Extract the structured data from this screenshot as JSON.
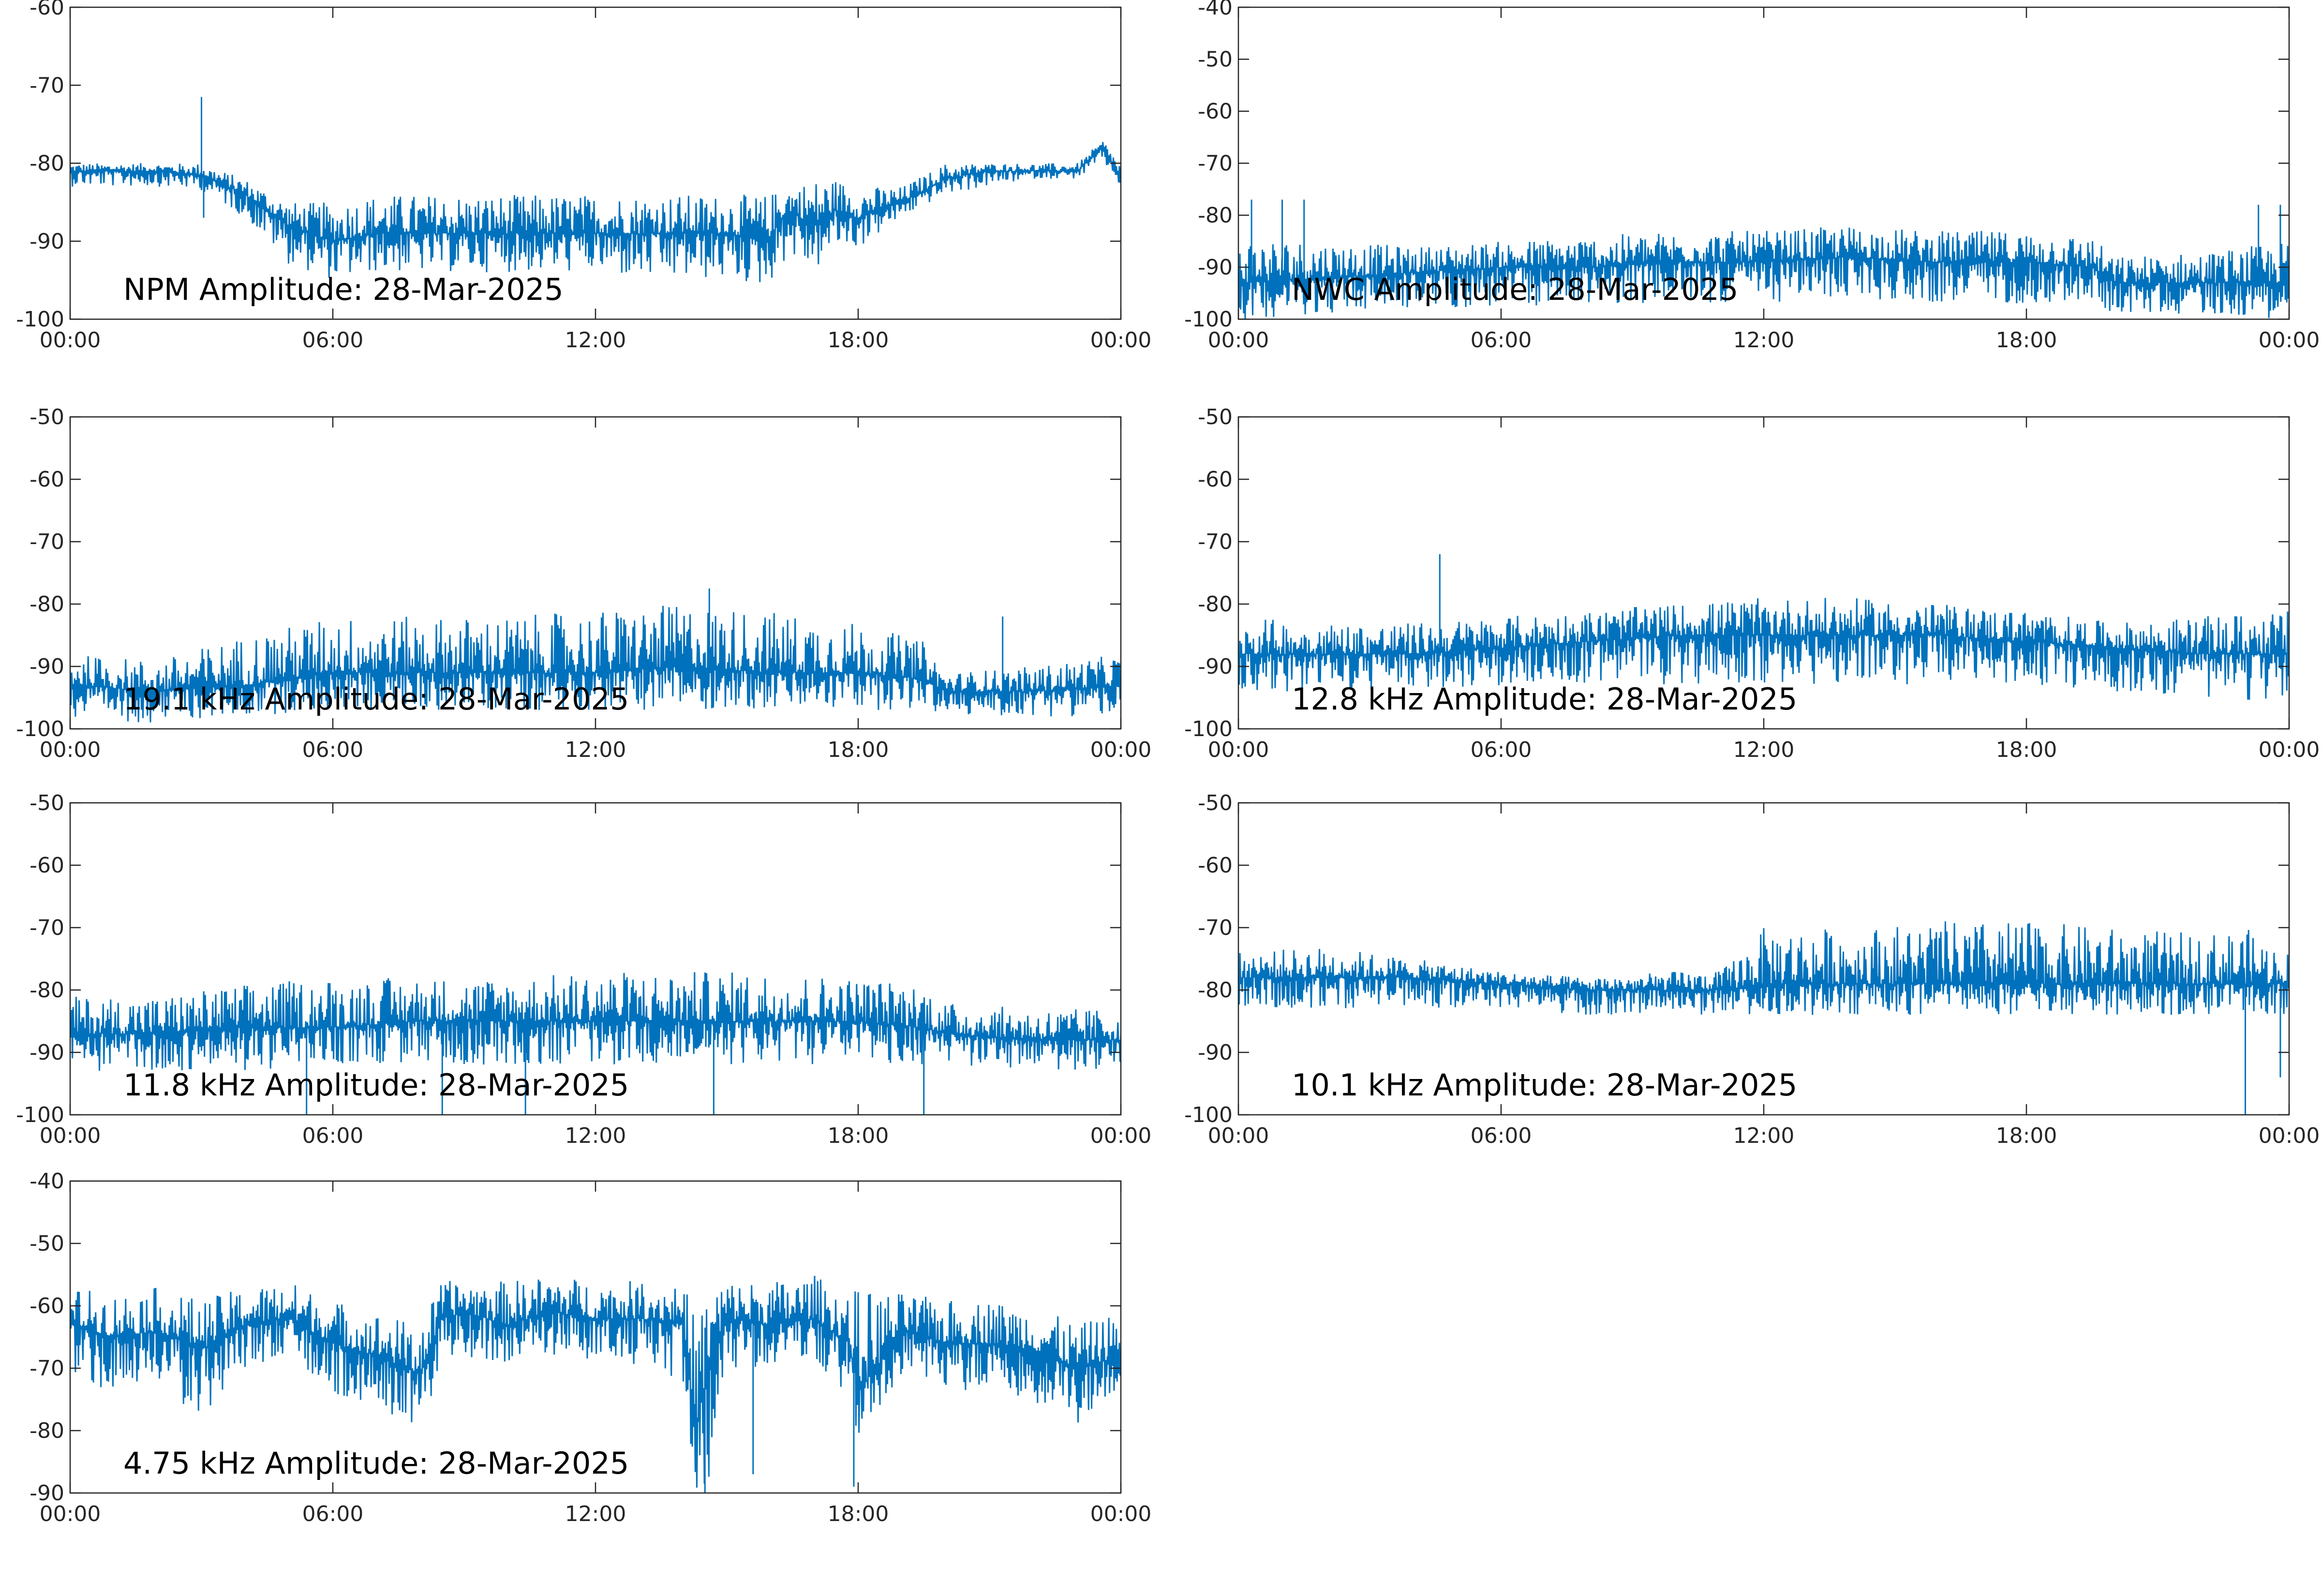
{
  "figure": {
    "line_color": "#0072BD",
    "axis_color": "#262626",
    "background": "#ffffff"
  },
  "chart_data": [
    {
      "type": "line",
      "title": "NPM Amplitude: 28-Mar-2025",
      "xlabel": "",
      "ylabel": "",
      "xticklabels": [
        "00:00",
        "06:00",
        "12:00",
        "18:00",
        "00:00"
      ],
      "xlim_hours": [
        0,
        24
      ],
      "ylim": [
        -100,
        -60
      ],
      "yticks": [
        -100,
        -90,
        -80,
        -70,
        -60
      ],
      "grid": false,
      "series": [
        {
          "x_hours": [
            0,
            1,
            2,
            3,
            4,
            5,
            6,
            7,
            8,
            9,
            10,
            11,
            12,
            13,
            14,
            15,
            15.9,
            16.4,
            17,
            17.5,
            18,
            19,
            20,
            21,
            22,
            23,
            23.6,
            24
          ],
          "y_center": [
            -81,
            -81,
            -81,
            -81.5,
            -84,
            -88,
            -90,
            -89,
            -89,
            -89,
            -89,
            -89,
            -89,
            -89,
            -89,
            -89,
            -90,
            -86,
            -88,
            -86,
            -87,
            -85,
            -82,
            -81,
            -81,
            -81,
            -78,
            -82
          ],
          "y_low": [
            -83,
            -83,
            -83,
            -83.5,
            -87,
            -93,
            -95,
            -94,
            -94,
            -94,
            -94,
            -94,
            -94,
            -95,
            -95,
            -95,
            -96,
            -92,
            -94,
            -91,
            -91,
            -87,
            -84,
            -83,
            -82,
            -82,
            -80,
            -83
          ],
          "y_high": [
            -80,
            -80,
            -80,
            -80,
            -82,
            -85,
            -85,
            -84,
            -84,
            -84,
            -84,
            -84,
            -84,
            -84,
            -84,
            -84,
            -84,
            -83,
            -82,
            -82,
            -83,
            -83,
            -80,
            -80,
            -80,
            -80,
            -77,
            -80
          ],
          "spikes": [
            {
              "x_hours": 3.0,
              "y": -71.5
            },
            {
              "x_hours": 3.05,
              "y": -87
            }
          ]
        }
      ]
    },
    {
      "type": "line",
      "title": "NWC Amplitude: 28-Mar-2025",
      "xlabel": "",
      "ylabel": "",
      "xticklabels": [
        "00:00",
        "06:00",
        "12:00",
        "18:00",
        "00:00"
      ],
      "xlim_hours": [
        0,
        24
      ],
      "ylim": [
        -100,
        -40
      ],
      "yticks": [
        -100,
        -90,
        -80,
        -70,
        -60,
        -50,
        -40
      ],
      "grid": false,
      "series": [
        {
          "x_hours": [
            0,
            2,
            4,
            6,
            8,
            10,
            12,
            14,
            16,
            18,
            19.5,
            20,
            22,
            24
          ],
          "y_center": [
            -93,
            -92,
            -91,
            -90,
            -90,
            -89,
            -89,
            -88,
            -89,
            -89,
            -90,
            -93,
            -93,
            -93
          ],
          "y_low": [
            -100,
            -99,
            -98,
            -98,
            -97,
            -97,
            -97,
            -96,
            -97,
            -97,
            -97,
            -99,
            -99,
            -100
          ],
          "y_high": [
            -84,
            -85,
            -86,
            -85,
            -84,
            -83,
            -83,
            -82,
            -83,
            -83,
            -84,
            -88,
            -87,
            -85
          ],
          "spikes": [
            {
              "x_hours": 0.3,
              "y": -77
            },
            {
              "x_hours": 1.0,
              "y": -77
            },
            {
              "x_hours": 1.5,
              "y": -77
            },
            {
              "x_hours": 23.3,
              "y": -78
            },
            {
              "x_hours": 23.8,
              "y": -78
            }
          ]
        }
      ]
    },
    {
      "type": "line",
      "title": "19.1 kHz Amplitude: 28-Mar-2025",
      "xlabel": "",
      "ylabel": "",
      "xticklabels": [
        "00:00",
        "06:00",
        "12:00",
        "18:00",
        "00:00"
      ],
      "xlim_hours": [
        0,
        24
      ],
      "ylim": [
        -100,
        -50
      ],
      "yticks": [
        -100,
        -90,
        -80,
        -70,
        -60,
        -50
      ],
      "grid": false,
      "series": [
        {
          "x_hours": [
            0,
            2,
            4,
            6,
            8,
            10,
            12,
            14,
            16,
            18,
            19.5,
            20,
            22,
            24
          ],
          "y_center": [
            -93,
            -94,
            -93,
            -91,
            -91,
            -91,
            -91,
            -90,
            -91,
            -91,
            -92,
            -94,
            -94,
            -93
          ],
          "y_low": [
            -99,
            -99,
            -98,
            -97,
            -97,
            -97,
            -97,
            -97,
            -97,
            -97,
            -97,
            -98,
            -98,
            -98
          ],
          "y_high": [
            -88,
            -89,
            -85,
            -82,
            -82,
            -82,
            -81,
            -80,
            -81,
            -83,
            -86,
            -91,
            -90,
            -88
          ],
          "spikes": [
            {
              "x_hours": 14.6,
              "y": -77.5
            },
            {
              "x_hours": 21.3,
              "y": -82
            }
          ]
        }
      ]
    },
    {
      "type": "line",
      "title": "12.8 kHz Amplitude: 28-Mar-2025",
      "xlabel": "",
      "ylabel": "",
      "xticklabels": [
        "00:00",
        "06:00",
        "12:00",
        "18:00",
        "00:00"
      ],
      "xlim_hours": [
        0,
        24
      ],
      "ylim": [
        -100,
        -50
      ],
      "yticks": [
        -100,
        -90,
        -80,
        -70,
        -60,
        -50
      ],
      "grid": false,
      "series": [
        {
          "x_hours": [
            0,
            2,
            4,
            6,
            8,
            10,
            12,
            14,
            16,
            18,
            20,
            22,
            24
          ],
          "y_center": [
            -88,
            -88,
            -88,
            -87,
            -86,
            -85,
            -85,
            -85,
            -85,
            -86,
            -87,
            -88,
            -88
          ],
          "y_low": [
            -94,
            -94,
            -94,
            -93,
            -93,
            -93,
            -93,
            -93,
            -93,
            -93,
            -94,
            -95,
            -96
          ],
          "y_high": [
            -82,
            -83,
            -83,
            -82,
            -81,
            -80,
            -79,
            -79,
            -80,
            -81,
            -83,
            -82,
            -81
          ],
          "spikes": [
            {
              "x_hours": 4.6,
              "y": -72
            }
          ]
        }
      ]
    },
    {
      "type": "line",
      "title": "11.8 kHz Amplitude: 28-Mar-2025",
      "xlabel": "",
      "ylabel": "",
      "xticklabels": [
        "00:00",
        "06:00",
        "12:00",
        "18:00",
        "00:00"
      ],
      "xlim_hours": [
        0,
        24
      ],
      "ylim": [
        -100,
        -50
      ],
      "yticks": [
        -100,
        -90,
        -80,
        -70,
        -60,
        -50
      ],
      "grid": false,
      "series": [
        {
          "x_hours": [
            0,
            2,
            4,
            6,
            8,
            10,
            12,
            14,
            16,
            18,
            19.5,
            20,
            22,
            24
          ],
          "y_center": [
            -87,
            -87,
            -86,
            -86,
            -85,
            -85,
            -85,
            -85,
            -85,
            -85,
            -86,
            -87,
            -88,
            -88
          ],
          "y_low": [
            -93,
            -93,
            -93,
            -92,
            -92,
            -92,
            -92,
            -92,
            -92,
            -92,
            -92,
            -92,
            -93,
            -93
          ],
          "y_high": [
            -81,
            -81,
            -79,
            -78,
            -78,
            -78,
            -77,
            -77,
            -77,
            -78,
            -79,
            -82,
            -83,
            -83
          ],
          "spikes": [
            {
              "x_hours": 5.4,
              "y": -100
            },
            {
              "x_hours": 8.5,
              "y": -100
            },
            {
              "x_hours": 10.4,
              "y": -100
            },
            {
              "x_hours": 14.7,
              "y": -100
            },
            {
              "x_hours": 19.5,
              "y": -100
            }
          ]
        }
      ]
    },
    {
      "type": "line",
      "title": "10.1 kHz Amplitude: 28-Mar-2025",
      "xlabel": "",
      "ylabel": "",
      "xticklabels": [
        "00:00",
        "06:00",
        "12:00",
        "18:00",
        "00:00"
      ],
      "xlim_hours": [
        0,
        24
      ],
      "ylim": [
        -100,
        -50
      ],
      "yticks": [
        -100,
        -90,
        -80,
        -70,
        -60,
        -50
      ],
      "grid": false,
      "series": [
        {
          "x_hours": [
            0,
            2,
            4,
            6,
            8,
            10,
            11,
            12,
            14,
            16,
            18,
            20,
            22,
            23,
            24
          ],
          "y_center": [
            -78,
            -78,
            -78,
            -79,
            -80,
            -80,
            -80,
            -79,
            -79,
            -79,
            -79,
            -79,
            -79,
            -79,
            -79
          ],
          "y_low": [
            -83,
            -83,
            -83,
            -83,
            -84,
            -84,
            -84,
            -84,
            -84,
            -84,
            -84,
            -84,
            -84,
            -84,
            -84
          ],
          "y_high": [
            -74,
            -73,
            -75,
            -77,
            -78,
            -77,
            -77,
            -70,
            -70,
            -69,
            -69,
            -70,
            -71,
            -70,
            -74
          ],
          "spikes": [
            {
              "x_hours": 23.0,
              "y": -100
            },
            {
              "x_hours": 23.8,
              "y": -94
            }
          ]
        }
      ]
    },
    {
      "type": "line",
      "title": "4.75 kHz Amplitude: 28-Mar-2025",
      "xlabel": "",
      "ylabel": "",
      "xticklabels": [
        "00:00",
        "06:00",
        "12:00",
        "18:00",
        "00:00"
      ],
      "xlim_hours": [
        0,
        24
      ],
      "ylim": [
        -90,
        -40
      ],
      "yticks": [
        -90,
        -80,
        -70,
        -60,
        -50,
        -40
      ],
      "grid": false,
      "series": [
        {
          "x_hours": [
            0,
            1,
            2,
            3,
            4,
            5,
            6,
            7,
            8,
            8.5,
            9,
            10,
            11,
            12,
            13,
            14,
            14.3,
            14.6,
            15,
            16,
            17,
            17.8,
            18,
            19,
            20,
            21,
            22,
            23,
            24
          ],
          "y_center": [
            -63,
            -65,
            -64,
            -67,
            -63,
            -62,
            -66,
            -68,
            -71,
            -62,
            -61,
            -63,
            -61,
            -62,
            -62,
            -63,
            -79,
            -70,
            -62,
            -63,
            -62,
            -66,
            -74,
            -64,
            -66,
            -66,
            -67,
            -70,
            -68
          ],
          "y_low": [
            -72,
            -74,
            -73,
            -78,
            -70,
            -69,
            -74,
            -76,
            -80,
            -70,
            -68,
            -70,
            -68,
            -69,
            -70,
            -72,
            -90,
            -90,
            -70,
            -70,
            -69,
            -76,
            -82,
            -72,
            -74,
            -74,
            -76,
            -79,
            -77
          ],
          "y_high": [
            -57,
            -58,
            -57,
            -59,
            -57,
            -56,
            -59,
            -61,
            -63,
            -56,
            -56,
            -56,
            -55,
            -56,
            -56,
            -56,
            -62,
            -56,
            -56,
            -56,
            -55,
            -58,
            -57,
            -58,
            -59,
            -59,
            -60,
            -63,
            -61
          ],
          "spikes": [
            {
              "x_hours": 14.5,
              "y": -90
            },
            {
              "x_hours": 15.6,
              "y": -87
            },
            {
              "x_hours": 17.9,
              "y": -89
            }
          ]
        }
      ]
    }
  ]
}
